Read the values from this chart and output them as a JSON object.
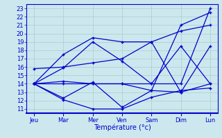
{
  "xlabel": "Température (°c)",
  "background_color": "#cce8ee",
  "grid_color": "#aacccc",
  "line_color": "#0000cc",
  "x_labels": [
    "Jeu",
    "Mar",
    "Mer",
    "Ven",
    "Sam",
    "Dim",
    "Lun"
  ],
  "x_positions": [
    0,
    1,
    2,
    3,
    4,
    5,
    6
  ],
  "ylim": [
    10.5,
    23.5
  ],
  "yticks": [
    11,
    12,
    13,
    14,
    15,
    16,
    17,
    18,
    19,
    20,
    21,
    22,
    23
  ],
  "series": [
    [
      14.0,
      14.3,
      14.0,
      14.0,
      13.2,
      13.0,
      14.0
    ],
    [
      14.0,
      15.9,
      19.0,
      16.7,
      14.0,
      18.5,
      14.0
    ],
    [
      14.0,
      12.1,
      11.0,
      11.0,
      12.4,
      13.2,
      13.5
    ],
    [
      15.8,
      16.0,
      16.5,
      17.0,
      19.0,
      20.3,
      21.0
    ],
    [
      14.0,
      12.3,
      14.2,
      11.2,
      13.2,
      21.0,
      22.5
    ],
    [
      14.0,
      17.5,
      19.5,
      19.0,
      19.0,
      13.0,
      18.5
    ],
    [
      14.0,
      14.0,
      14.0,
      14.0,
      14.0,
      14.0,
      23.0
    ]
  ],
  "marker": "+",
  "linewidth": 0.9,
  "markersize": 3.5,
  "label_fontsize": 6,
  "xlabel_fontsize": 7
}
